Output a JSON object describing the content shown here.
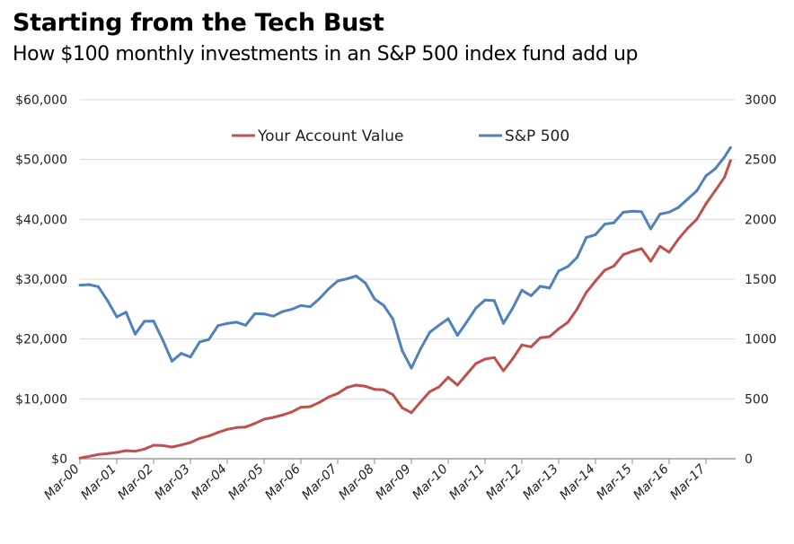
{
  "chart_data": {
    "type": "line",
    "title": "Starting from the Tech Bust",
    "subtitle": "How $100 monthly investments in an S&P 500 index fund add up",
    "x": [
      "2000-03",
      "2000-06",
      "2000-09",
      "2000-12",
      "2001-03",
      "2001-06",
      "2001-09",
      "2001-12",
      "2002-03",
      "2002-06",
      "2002-09",
      "2002-12",
      "2003-03",
      "2003-06",
      "2003-09",
      "2003-12",
      "2004-03",
      "2004-06",
      "2004-09",
      "2004-12",
      "2005-03",
      "2005-06",
      "2005-09",
      "2005-12",
      "2006-03",
      "2006-06",
      "2006-09",
      "2006-12",
      "2007-03",
      "2007-06",
      "2007-09",
      "2007-12",
      "2008-03",
      "2008-06",
      "2008-09",
      "2008-12",
      "2009-03",
      "2009-06",
      "2009-09",
      "2009-12",
      "2010-03",
      "2010-06",
      "2010-09",
      "2010-12",
      "2011-03",
      "2011-06",
      "2011-09",
      "2011-12",
      "2012-03",
      "2012-06",
      "2012-09",
      "2012-12",
      "2013-03",
      "2013-06",
      "2013-09",
      "2013-12",
      "2014-03",
      "2014-06",
      "2014-09",
      "2014-12",
      "2015-03",
      "2015-06",
      "2015-09",
      "2015-12",
      "2016-03",
      "2016-06",
      "2016-09",
      "2016-12",
      "2017-03",
      "2017-06",
      "2017-09",
      "2017-11"
    ],
    "series": [
      {
        "name": "Your Account Value",
        "axis": "left",
        "color": "#c0504d",
        "values": [
          100,
          400,
          700,
          850,
          1050,
          1350,
          1250,
          1600,
          2250,
          2200,
          1950,
          2300,
          2700,
          3400,
          3800,
          4400,
          4900,
          5200,
          5300,
          5900,
          6600,
          6900,
          7300,
          7800,
          8600,
          8700,
          9400,
          10300,
          10900,
          11900,
          12300,
          12100,
          11600,
          11500,
          10700,
          8500,
          7700,
          9500,
          11200,
          12000,
          13600,
          12300,
          14100,
          15900,
          16650,
          16900,
          14700,
          16700,
          19000,
          18700,
          20200,
          20400,
          21700,
          22800,
          25000,
          27800,
          29700,
          31500,
          32200,
          34100,
          34650,
          35100,
          33000,
          35500,
          34500,
          36700,
          38500,
          40000,
          42600,
          44800,
          47000,
          49800
        ]
      },
      {
        "name": "S&P 500",
        "axis": "right",
        "color": "#4f81bd",
        "values": [
          1450,
          1455,
          1437,
          1320,
          1185,
          1224,
          1041,
          1148,
          1150,
          990,
          815,
          880,
          850,
          975,
          996,
          1112,
          1130,
          1141,
          1115,
          1212,
          1210,
          1191,
          1229,
          1248,
          1280,
          1270,
          1336,
          1418,
          1485,
          1503,
          1527,
          1468,
          1335,
          1280,
          1166,
          903,
          757,
          919,
          1057,
          1115,
          1169,
          1031,
          1141,
          1258,
          1326,
          1321,
          1131,
          1258,
          1408,
          1362,
          1441,
          1426,
          1569,
          1606,
          1682,
          1848,
          1872,
          1960,
          1972,
          2059,
          2068,
          2063,
          1920,
          2044,
          2060,
          2099,
          2168,
          2239,
          2363,
          2423,
          2519,
          2600
        ]
      }
    ],
    "y_left": {
      "ticks": [
        "$0",
        "$10,000",
        "$20,000",
        "$30,000",
        "$40,000",
        "$50,000",
        "$60,000"
      ],
      "range": [
        0,
        60000
      ]
    },
    "y_right": {
      "ticks": [
        "0",
        "500",
        "1000",
        "1500",
        "2000",
        "2500",
        "3000"
      ],
      "range": [
        0,
        3000
      ]
    },
    "x_ticks": [
      "Mar-00",
      "Mar-01",
      "Mar-02",
      "Mar-03",
      "Mar-04",
      "Mar-05",
      "Mar-06",
      "Mar-07",
      "Mar-08",
      "Mar-09",
      "Mar-10",
      "Mar-11",
      "Mar-12",
      "Mar-13",
      "Mar-14",
      "Mar-15",
      "Mar-16",
      "Mar-17"
    ],
    "grid": true,
    "legend": "top-center"
  }
}
